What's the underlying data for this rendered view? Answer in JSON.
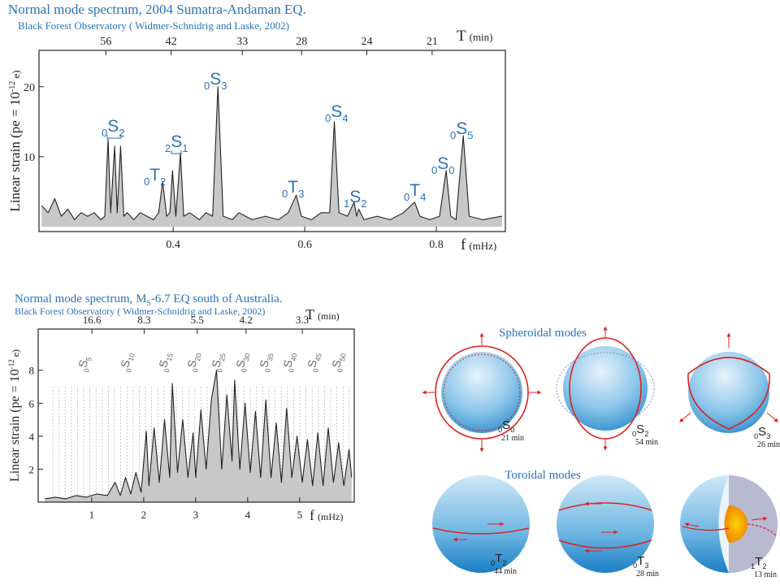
{
  "chart_data": [
    {
      "type": "line",
      "title": "Normal mode spectrum, 2004 Sumatra-Andaman EQ.",
      "subtitle": "Black Forest Observatory ( Widmer-Schnidrig and Laske, 2002)",
      "xlabel": "f",
      "xlabel_unit": "(mHz)",
      "x2label": "T",
      "x2label_unit": "(min)",
      "x2_scale": "period",
      "ylabel_parts": [
        "Linear strain (pe = 10",
        "-12",
        " e)"
      ],
      "xlim": [
        0.196,
        0.905
      ],
      "ylim": [
        -0.7,
        25.2
      ],
      "xticks": [
        0.4,
        0.6,
        0.8
      ],
      "yticks": [
        10,
        20
      ],
      "x2ticks": [
        56,
        42,
        33,
        28,
        24,
        21
      ],
      "color": "#222222",
      "fill": "#c8c8c8",
      "x": [
        0.2,
        0.21,
        0.22,
        0.23,
        0.24,
        0.25,
        0.26,
        0.27,
        0.28,
        0.29,
        0.296,
        0.301,
        0.305,
        0.311,
        0.315,
        0.32,
        0.325,
        0.33,
        0.34,
        0.35,
        0.36,
        0.37,
        0.378,
        0.384,
        0.39,
        0.395,
        0.399,
        0.404,
        0.411,
        0.416,
        0.425,
        0.44,
        0.45,
        0.46,
        0.468,
        0.476,
        0.49,
        0.5,
        0.52,
        0.54,
        0.56,
        0.575,
        0.587,
        0.595,
        0.61,
        0.625,
        0.638,
        0.645,
        0.652,
        0.665,
        0.675,
        0.679,
        0.682,
        0.69,
        0.71,
        0.73,
        0.75,
        0.767,
        0.775,
        0.79,
        0.805,
        0.815,
        0.822,
        0.83,
        0.841,
        0.85,
        0.87,
        0.9
      ],
      "values": [
        3,
        2,
        4,
        1.5,
        2.5,
        1,
        2,
        1.5,
        2,
        1,
        1.5,
        12.5,
        2,
        11.5,
        2,
        11.5,
        1.5,
        2,
        1,
        2,
        1.5,
        1,
        2,
        6.5,
        1.5,
        2,
        8,
        1.5,
        10.5,
        1.5,
        2,
        1,
        2,
        1.5,
        20,
        1.5,
        1,
        2,
        1,
        1.5,
        1,
        2,
        4.5,
        1.5,
        1,
        2,
        2,
        15,
        2,
        1.5,
        3.5,
        1.5,
        2.5,
        1,
        1.5,
        1,
        2,
        3.5,
        1.5,
        1,
        1.5,
        8,
        1.5,
        1,
        13,
        1.5,
        1,
        1.5
      ],
      "annotations": [
        {
          "pre": "0",
          "letter": "S",
          "sub": "2"
        },
        {
          "pre": "0",
          "letter": "T",
          "sub": "2"
        },
        {
          "pre": "2",
          "letter": "S",
          "sub": "1"
        },
        {
          "pre": "0",
          "letter": "S",
          "sub": "3"
        },
        {
          "pre": "0",
          "letter": "T",
          "sub": "3"
        },
        {
          "pre": "0",
          "letter": "S",
          "sub": "4"
        },
        {
          "pre": "1",
          "letter": "S",
          "sub": "2"
        },
        {
          "pre": "0",
          "letter": "T",
          "sub": "4"
        },
        {
          "pre": "0",
          "letter": "S",
          "sub": "0"
        },
        {
          "pre": "0",
          "letter": "S",
          "sub": "5"
        }
      ]
    },
    {
      "type": "line",
      "title_parts": [
        "Normal mode spectrum, M",
        "S",
        "-6.7 EQ south of Australia."
      ],
      "subtitle": "Black Forest Observatory ( Widmer-Schnidrig and Laske, 2002)",
      "xlabel": "f",
      "xlabel_unit": "(mHz)",
      "x2label": "T",
      "x2label_unit": "(min)",
      "x2_scale": "period",
      "ylabel_parts": [
        "Linear strain (pe = 10",
        "-12",
        " e)"
      ],
      "xlim": [
        -0.03,
        6.05
      ],
      "ylim": [
        0,
        10.5
      ],
      "xticks": [
        1,
        2,
        3,
        4,
        5
      ],
      "yticks": [
        2,
        4,
        6,
        8
      ],
      "x2ticks": [
        16.6,
        8.3,
        5.5,
        4.2,
        3.3
      ],
      "color": "#222222",
      "fill": "#c8c8c8",
      "x": [
        0.1,
        0.3,
        0.5,
        0.7,
        0.9,
        1.1,
        1.3,
        1.45,
        1.55,
        1.65,
        1.75,
        1.85,
        1.95,
        2.05,
        2.1,
        2.2,
        2.3,
        2.4,
        2.5,
        2.55,
        2.65,
        2.75,
        2.85,
        2.95,
        3.0,
        3.1,
        3.2,
        3.3,
        3.4,
        3.5,
        3.6,
        3.7,
        3.75,
        3.85,
        3.95,
        4.05,
        4.15,
        4.25,
        4.35,
        4.45,
        4.55,
        4.65,
        4.75,
        4.85,
        4.95,
        5.05,
        5.15,
        5.25,
        5.35,
        5.45,
        5.55,
        5.65,
        5.75,
        5.85,
        5.95,
        6.0
      ],
      "values": [
        0.2,
        0.3,
        0.2,
        0.4,
        0.3,
        0.5,
        0.4,
        1.2,
        0.4,
        1.5,
        0.5,
        1.8,
        0.6,
        4.3,
        1.0,
        4.5,
        1.2,
        5.0,
        1.5,
        7.2,
        1.8,
        5.0,
        1.5,
        4.2,
        1.5,
        5.6,
        2.0,
        6.2,
        8.0,
        2.0,
        6.5,
        2.5,
        7.4,
        2.0,
        6.0,
        1.8,
        5.5,
        1.5,
        6.2,
        1.5,
        4.8,
        1.2,
        5.7,
        1.5,
        4.0,
        1.2,
        3.8,
        1.0,
        4.2,
        1.0,
        4.5,
        1.2,
        3.6,
        1.0,
        3.2,
        1.5
      ],
      "annotations": [
        {
          "pre": "0",
          "letter": "S",
          "sub": "5"
        },
        {
          "pre": "0",
          "letter": "S",
          "sub": "10"
        },
        {
          "pre": "0",
          "letter": "S",
          "sub": "15"
        },
        {
          "pre": "0",
          "letter": "S",
          "sub": "20"
        },
        {
          "pre": "0",
          "letter": "S",
          "sub": "25"
        },
        {
          "pre": "0",
          "letter": "S",
          "sub": "30"
        },
        {
          "pre": "0",
          "letter": "S",
          "sub": "35"
        },
        {
          "pre": "0",
          "letter": "S",
          "sub": "40"
        },
        {
          "pre": "0",
          "letter": "S",
          "sub": "45"
        },
        {
          "pre": "0",
          "letter": "S",
          "sub": "50"
        }
      ]
    }
  ],
  "diagram": {
    "spheroidal_title": "Spheroidal modes",
    "toroidal_title": "Toroidal modes",
    "modes": [
      {
        "pre": "0",
        "letter": "S",
        "sub": "0",
        "period": "21 min"
      },
      {
        "pre": "0",
        "letter": "S",
        "sub": "2",
        "period": "54 min"
      },
      {
        "pre": "0",
        "letter": "S",
        "sub": "3",
        "period": "26 min"
      },
      {
        "pre": "0",
        "letter": "T",
        "sub": "2",
        "period": "44 min"
      },
      {
        "pre": "0",
        "letter": "T",
        "sub": "3",
        "period": "28 min"
      },
      {
        "pre": "1",
        "letter": "T",
        "sub": "2",
        "period": "13 min"
      }
    ]
  }
}
